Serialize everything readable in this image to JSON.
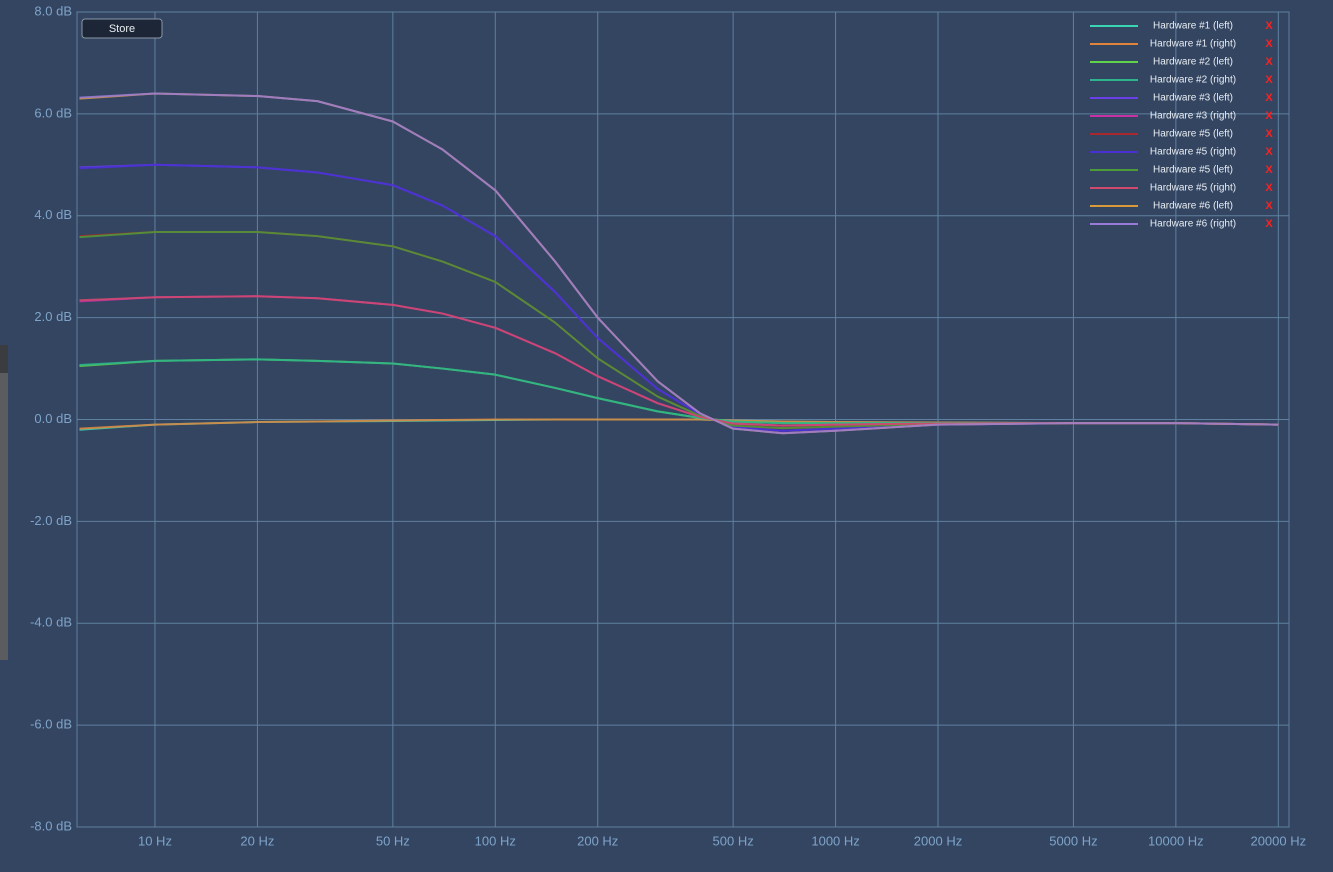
{
  "chart_data": {
    "type": "line",
    "button": "Store",
    "legend_remove": "X",
    "legend": "top-right",
    "grid": true,
    "x_scale": "log",
    "xlim": [
      5.9,
      21500
    ],
    "ylim": [
      -8,
      8
    ],
    "xticks": [
      {
        "value": 10,
        "label": "10 Hz"
      },
      {
        "value": 20,
        "label": "20 Hz"
      },
      {
        "value": 50,
        "label": "50 Hz"
      },
      {
        "value": 100,
        "label": "100 Hz"
      },
      {
        "value": 200,
        "label": "200 Hz"
      },
      {
        "value": 500,
        "label": "500 Hz"
      },
      {
        "value": 1000,
        "label": "1000 Hz"
      },
      {
        "value": 2000,
        "label": "2000 Hz"
      },
      {
        "value": 5000,
        "label": "5000 Hz"
      },
      {
        "value": 10000,
        "label": "10000 Hz"
      },
      {
        "value": 20000,
        "label": "20000 Hz"
      }
    ],
    "yticks": [
      {
        "value": -8,
        "label": "-8.0 dB"
      },
      {
        "value": -6,
        "label": "-6.0 dB"
      },
      {
        "value": -4,
        "label": "-4.0 dB"
      },
      {
        "value": -2,
        "label": "-2.0 dB"
      },
      {
        "value": 0,
        "label": "0.0 dB"
      },
      {
        "value": 2,
        "label": "2.0 dB"
      },
      {
        "value": 4,
        "label": "4.0 dB"
      },
      {
        "value": 6,
        "label": "6.0 dB"
      },
      {
        "value": 8,
        "label": "8.0 dB"
      }
    ],
    "x": [
      6,
      10,
      20,
      30,
      50,
      70,
      100,
      150,
      200,
      300,
      400,
      500,
      700,
      1000,
      2000,
      5000,
      10000,
      20000
    ],
    "series": [
      {
        "name": "Hardware #1 (left)",
        "color": "#3ad6b4",
        "values": [
          -0.2,
          -0.1,
          -0.05,
          -0.04,
          -0.03,
          -0.02,
          -0.01,
          0,
          0,
          0,
          0,
          -0.02,
          -0.04,
          -0.05,
          -0.06,
          -0.07,
          -0.07,
          -0.1
        ]
      },
      {
        "name": "Hardware #1 (right)",
        "color": "#e0843c",
        "values": [
          -0.18,
          -0.1,
          -0.05,
          -0.04,
          -0.02,
          -0.01,
          0,
          0,
          0,
          0,
          0,
          -0.02,
          -0.04,
          -0.05,
          -0.06,
          -0.07,
          -0.07,
          -0.1
        ]
      },
      {
        "name": "Hardware #2 (left)",
        "color": "#5fd44a",
        "values": [
          1.05,
          1.15,
          1.18,
          1.15,
          1.1,
          1.0,
          0.88,
          0.62,
          0.42,
          0.16,
          0.03,
          -0.04,
          -0.07,
          -0.07,
          -0.07,
          -0.07,
          -0.07,
          -0.1
        ]
      },
      {
        "name": "Hardware #2 (right)",
        "color": "#2cb48c",
        "values": [
          1.07,
          1.15,
          1.18,
          1.15,
          1.1,
          1.0,
          0.88,
          0.62,
          0.42,
          0.16,
          0.03,
          -0.04,
          -0.07,
          -0.07,
          -0.07,
          -0.07,
          -0.07,
          -0.1
        ]
      },
      {
        "name": "Hardware #3 (left)",
        "color": "#6a40e6",
        "values": [
          4.95,
          5.0,
          4.95,
          4.85,
          4.6,
          4.2,
          3.6,
          2.5,
          1.6,
          0.6,
          0.1,
          -0.15,
          -0.22,
          -0.18,
          -0.1,
          -0.07,
          -0.07,
          -0.1
        ]
      },
      {
        "name": "Hardware #3 (right)",
        "color": "#c830a4",
        "values": [
          2.32,
          2.4,
          2.42,
          2.38,
          2.25,
          2.08,
          1.8,
          1.3,
          0.85,
          0.32,
          0.05,
          -0.08,
          -0.12,
          -0.1,
          -0.08,
          -0.07,
          -0.07,
          -0.1
        ]
      },
      {
        "name": "Hardware #5 (left)",
        "color": "#a8282c",
        "values": [
          3.6,
          3.68,
          3.68,
          3.6,
          3.4,
          3.1,
          2.7,
          1.9,
          1.2,
          0.45,
          0.07,
          -0.12,
          -0.17,
          -0.14,
          -0.09,
          -0.07,
          -0.07,
          -0.1
        ]
      },
      {
        "name": "Hardware #5 (right)",
        "color": "#4a30d4",
        "values": [
          4.93,
          5.0,
          4.95,
          4.85,
          4.6,
          4.2,
          3.6,
          2.5,
          1.6,
          0.6,
          0.1,
          -0.15,
          -0.22,
          -0.18,
          -0.1,
          -0.07,
          -0.07,
          -0.1
        ]
      },
      {
        "name": "Hardware #5 (left)",
        "color": "#4c9c3a",
        "values": [
          3.58,
          3.68,
          3.68,
          3.6,
          3.4,
          3.1,
          2.7,
          1.9,
          1.2,
          0.45,
          0.07,
          -0.12,
          -0.17,
          -0.14,
          -0.09,
          -0.07,
          -0.07,
          -0.1
        ]
      },
      {
        "name": "Hardware #5 (right)",
        "color": "#d04a6e",
        "values": [
          2.34,
          2.4,
          2.42,
          2.38,
          2.25,
          2.08,
          1.8,
          1.3,
          0.85,
          0.32,
          0.05,
          -0.08,
          -0.12,
          -0.1,
          -0.08,
          -0.07,
          -0.07,
          -0.1
        ]
      },
      {
        "name": "Hardware #6 (left)",
        "color": "#d89a3a",
        "values": [
          6.3,
          6.4,
          6.35,
          6.25,
          5.85,
          5.3,
          4.5,
          3.1,
          2.0,
          0.75,
          0.12,
          -0.18,
          -0.27,
          -0.22,
          -0.1,
          -0.07,
          -0.07,
          -0.1
        ]
      },
      {
        "name": "Hardware #6 (right)",
        "color": "#9a7ad8",
        "values": [
          6.32,
          6.4,
          6.35,
          6.25,
          5.85,
          5.3,
          4.5,
          3.1,
          2.0,
          0.75,
          0.12,
          -0.18,
          -0.27,
          -0.22,
          -0.1,
          -0.07,
          -0.07,
          -0.1
        ]
      }
    ]
  }
}
